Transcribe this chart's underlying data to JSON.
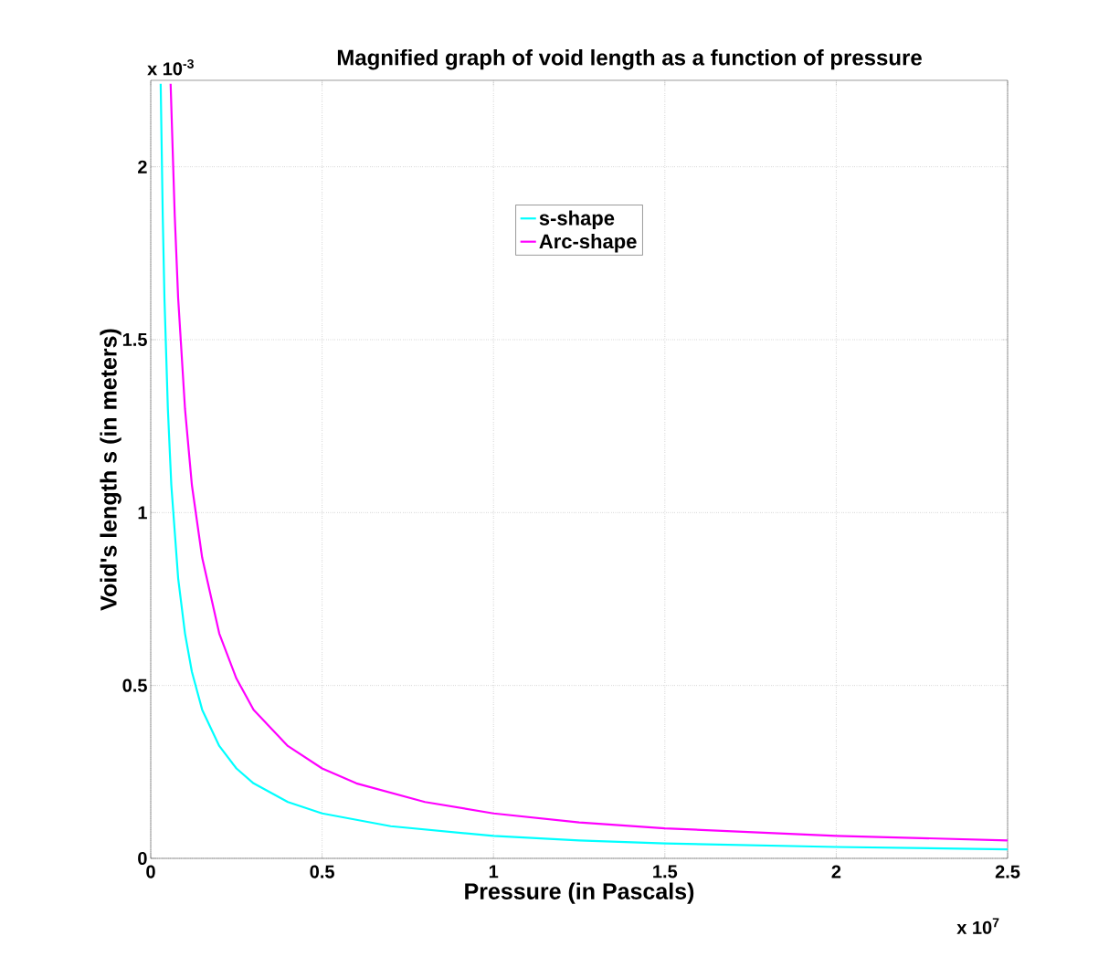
{
  "chart_data": {
    "type": "line",
    "title": "Magnified graph of void length as a function of pressure",
    "xlabel": "Pressure (in Pascals)",
    "ylabel": "Void's length s (in meters)",
    "xlim": [
      0,
      2.5
    ],
    "ylim": [
      0,
      2.25
    ],
    "xticks": [
      0,
      0.5,
      1,
      1.5,
      2,
      2.5
    ],
    "yticks": [
      0,
      0.5,
      1,
      1.5,
      2
    ],
    "grid": true,
    "legend": "top",
    "annotations": [
      "x 10$^{-3}$",
      "x 10$^{7}$"
    ],
    "series": [
      {
        "name": "s-shape",
        "color": "#00ffff",
        "x": [
          0.029,
          0.035,
          0.04,
          0.05,
          0.06,
          0.08,
          0.1,
          0.12,
          0.15,
          0.2,
          0.25,
          0.3,
          0.4,
          0.5,
          0.7,
          1,
          1.25,
          1.5,
          2,
          2.5
        ],
        "values": [
          2.24,
          1.86,
          1.62,
          1.3,
          1.08,
          0.81,
          0.65,
          0.54,
          0.43,
          0.325,
          0.26,
          0.217,
          0.163,
          0.13,
          0.093,
          0.065,
          0.052,
          0.043,
          0.033,
          0.026
        ]
      },
      {
        "name": "Arc-shape",
        "color": "#ff00ff",
        "x": [
          0.058,
          0.07,
          0.08,
          0.1,
          0.12,
          0.15,
          0.2,
          0.25,
          0.3,
          0.4,
          0.5,
          0.6,
          0.8,
          1,
          1.25,
          1.5,
          2,
          2.5
        ],
        "values": [
          2.24,
          1.86,
          1.62,
          1.3,
          1.08,
          0.87,
          0.65,
          0.52,
          0.43,
          0.325,
          0.26,
          0.217,
          0.163,
          0.13,
          0.104,
          0.087,
          0.065,
          0.052
        ]
      }
    ]
  }
}
